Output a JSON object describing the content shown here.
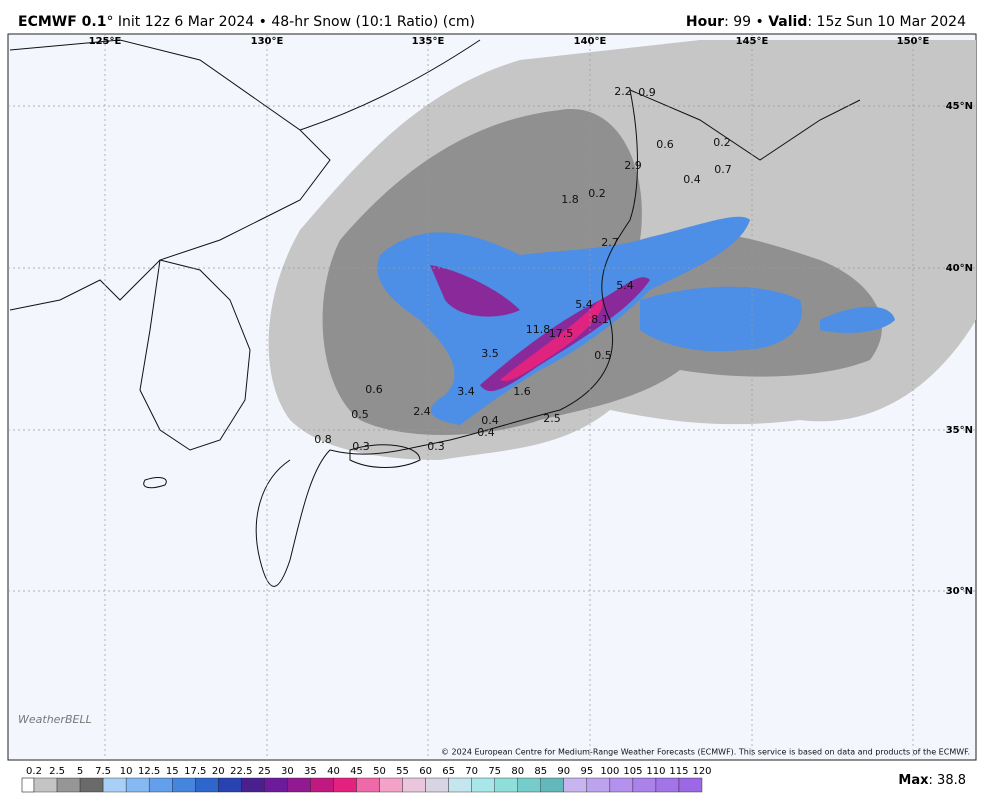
{
  "header": {
    "model": "ECMWF 0.1",
    "subtitle": "° Init 12z 6 Mar 2024 • 48-hr Snow (10:1 Ratio) (cm)",
    "hour_label": "Hour",
    "hour_value": ": 99 • ",
    "valid_label": "Valid",
    "valid_value": ": 15z Sun 10 Mar 2024"
  },
  "map": {
    "lon_labels": [
      "125°E",
      "130°E",
      "135°E",
      "140°E",
      "145°E",
      "150°E"
    ],
    "lat_labels": [
      "45°N",
      "40°N",
      "35°N",
      "30°N"
    ],
    "point_labels": [
      2.2,
      0.9,
      0.6,
      0.2,
      2.9,
      0.4,
      0.7,
      1.8,
      0.2,
      2.7,
      5.4,
      5.4,
      8.1,
      11.8,
      17.5,
      0.5,
      3.5,
      0.6,
      3.4,
      1.6,
      0.5,
      2.4,
      0.4,
      2.5,
      0.4,
      0.8,
      0.3,
      0.3
    ],
    "copyright": "© 2024 European Centre for Medium-Range Weather Forecasts (ECMWF). This service is based on data and products of the ECMWF.",
    "logo": "WeatherBELL"
  },
  "colorbar": {
    "ticks": [
      0.2,
      2.5,
      5,
      7.5,
      10,
      12.5,
      15,
      17.5,
      20,
      22.5,
      25,
      30,
      35,
      40,
      45,
      50,
      55,
      60,
      65,
      70,
      75,
      80,
      85,
      90,
      95,
      100,
      105,
      110,
      115,
      120
    ],
    "colors": [
      "#c4c4c4",
      "#969696",
      "#6a6a6a",
      "#a8d0f7",
      "#86b9f2",
      "#639fea",
      "#4585de",
      "#2f66cc",
      "#2842b2",
      "#4a1f8e",
      "#6c1b9c",
      "#911a90",
      "#c0197f",
      "#e4217f",
      "#ef68a8",
      "#f4a2c8",
      "#e9c6dc",
      "#d8d4e4",
      "#c4e6ef",
      "#a9e6ea",
      "#8fded9",
      "#76cccb",
      "#62b8bb",
      "#c8b4ee",
      "#bda2ee",
      "#b391ec",
      "#aa82ea",
      "#a374e8",
      "#9c68e6"
    ],
    "max_label": "Max",
    "max_value": ": 38.8"
  }
}
